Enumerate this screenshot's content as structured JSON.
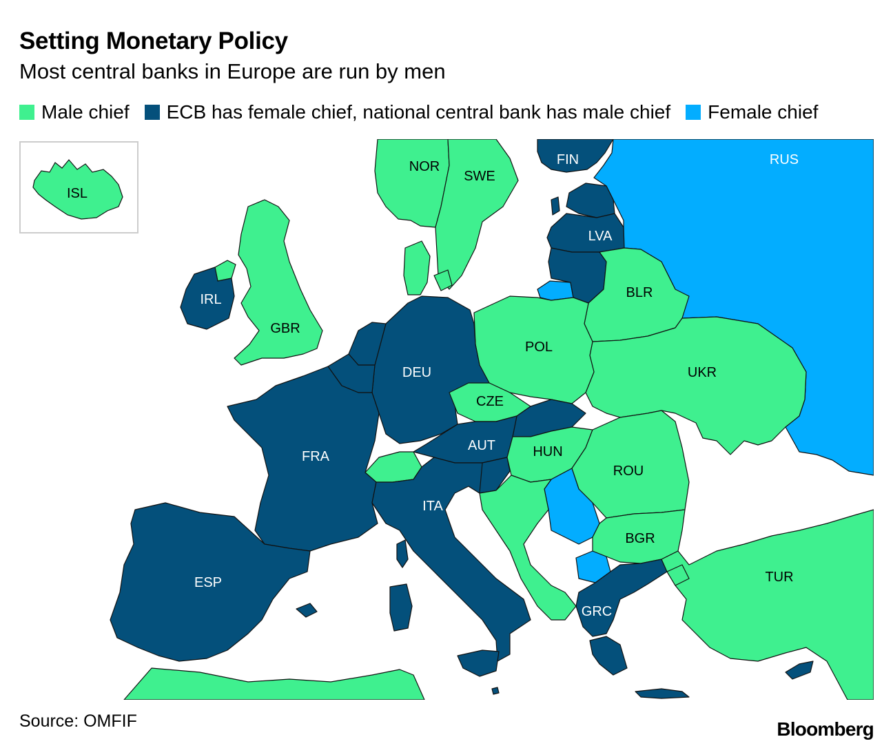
{
  "header": {
    "title": "Setting Monetary Policy",
    "subtitle": "Most central banks in Europe are run by men"
  },
  "legend": {
    "items": [
      {
        "label": "Male chief",
        "color": "#3ff08f"
      },
      {
        "label": "ECB has female chief, national central bank has male chief",
        "color": "#04507b"
      },
      {
        "label": "Female chief",
        "color": "#03adff"
      }
    ]
  },
  "map": {
    "labels": {
      "isl": "ISL",
      "nor": "NOR",
      "swe": "SWE",
      "fin": "FIN",
      "rus": "RUS",
      "lva": "LVA",
      "irl": "IRL",
      "gbr": "GBR",
      "blr": "BLR",
      "pol": "POL",
      "deu": "DEU",
      "ukr": "UKR",
      "cze": "CZE",
      "aut": "AUT",
      "hun": "HUN",
      "fra": "FRA",
      "rou": "ROU",
      "ita": "ITA",
      "bgr": "BGR",
      "tur": "TUR",
      "esp": "ESP",
      "grc": "GRC"
    }
  },
  "footer": {
    "source": "Source: OMFIF",
    "brand": "Bloomberg"
  }
}
